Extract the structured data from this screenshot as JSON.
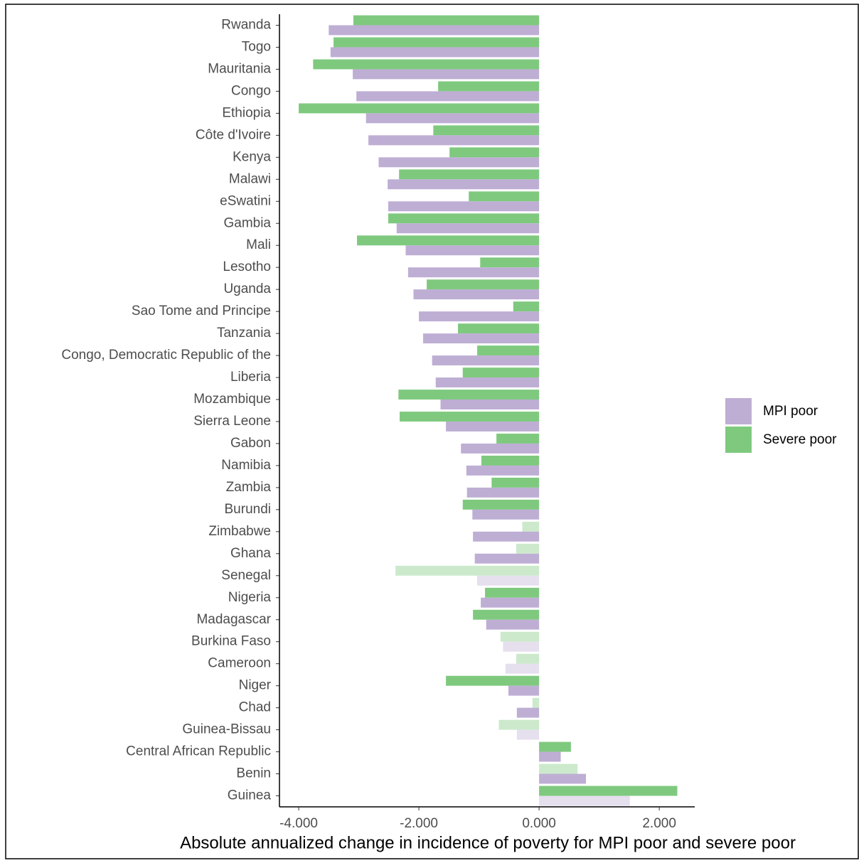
{
  "chart_data": {
    "type": "bar",
    "orientation": "horizontal",
    "xlabel": "Absolute annualized change in incidence of poverty for MPI poor and severe poor",
    "categories": [
      "Rwanda",
      "Togo",
      "Mauritania",
      "Congo",
      "Ethiopia",
      "Côte d'Ivoire",
      "Kenya",
      "Malawi",
      "eSwatini",
      "Gambia",
      "Mali",
      "Lesotho",
      "Uganda",
      "Sao Tome and Principe",
      "Tanzania",
      "Congo, Democratic Republic of the",
      "Liberia",
      "Mozambique",
      "Sierra Leone",
      "Gabon",
      "Namibia",
      "Zambia",
      "Burundi",
      "Zimbabwe",
      "Ghana",
      "Senegal",
      "Nigeria",
      "Madagascar",
      "Burkina Faso",
      "Cameroon",
      "Niger",
      "Chad",
      "Guinea-Bissau",
      "Central African Republic",
      "Benin",
      "Guinea"
    ],
    "series": [
      {
        "name": "MPI poor",
        "color": "#beaed4",
        "values": [
          -3.5,
          -3.47,
          -3.1,
          -3.04,
          -2.88,
          -2.84,
          -2.67,
          -2.52,
          -2.51,
          -2.37,
          -2.22,
          -2.18,
          -2.09,
          -2.0,
          -1.93,
          -1.78,
          -1.72,
          -1.64,
          -1.55,
          -1.3,
          -1.21,
          -1.2,
          -1.11,
          -1.1,
          -1.07,
          -1.03,
          -0.97,
          -0.88,
          -0.6,
          -0.56,
          -0.51,
          -0.37,
          -0.37,
          0.36,
          0.78,
          1.51
        ],
        "colors": [
          "#beaed4",
          "#beaed4",
          "#beaed4",
          "#beaed4",
          "#beaed4",
          "#beaed4",
          "#beaed4",
          "#beaed4",
          "#beaed4",
          "#beaed4",
          "#beaed4",
          "#beaed4",
          "#beaed4",
          "#beaed4",
          "#beaed4",
          "#beaed4",
          "#beaed4",
          "#beaed4",
          "#beaed4",
          "#beaed4",
          "#beaed4",
          "#beaed4",
          "#beaed4",
          "#beaed4",
          "#beaed4",
          "#e5dfee",
          "#beaed4",
          "#beaed4",
          "#e5dfee",
          "#e5dfee",
          "#beaed4",
          "#beaed4",
          "#e5dfee",
          "#beaed4",
          "#beaed4",
          "#e5dfee"
        ]
      },
      {
        "name": "Severe poor",
        "color": "#7fc97f",
        "values": [
          -3.09,
          -3.42,
          -3.76,
          -1.68,
          -4.0,
          -1.76,
          -1.49,
          -2.33,
          -1.17,
          -2.51,
          -3.03,
          -0.98,
          -1.87,
          -0.43,
          -1.35,
          -1.03,
          -1.27,
          -2.34,
          -2.32,
          -0.71,
          -0.96,
          -0.79,
          -1.27,
          -0.28,
          -0.38,
          -2.39,
          -0.9,
          -1.1,
          -0.64,
          -0.38,
          -1.55,
          -0.11,
          -0.67,
          0.53,
          0.64,
          2.3
        ],
        "colors": [
          "#7fc97f",
          "#7fc97f",
          "#7fc97f",
          "#7fc97f",
          "#7fc97f",
          "#7fc97f",
          "#7fc97f",
          "#7fc97f",
          "#7fc97f",
          "#7fc97f",
          "#7fc97f",
          "#7fc97f",
          "#7fc97f",
          "#7fc97f",
          "#7fc97f",
          "#7fc97f",
          "#7fc97f",
          "#7fc97f",
          "#7fc97f",
          "#7fc97f",
          "#7fc97f",
          "#7fc97f",
          "#7fc97f",
          "#cce9cc",
          "#cce9cc",
          "#cce9cc",
          "#7fc97f",
          "#7fc97f",
          "#cce9cc",
          "#cce9cc",
          "#7fc97f",
          "#cce9cc",
          "#cce9cc",
          "#7fc97f",
          "#cce9cc",
          "#7fc97f"
        ]
      }
    ],
    "xlim": [
      -4.32,
      2.59
    ],
    "xticks": [
      {
        "value": -4,
        "label": "-4.000"
      },
      {
        "value": -2,
        "label": "-2.000"
      },
      {
        "value": 0,
        "label": "0.000"
      },
      {
        "value": 2,
        "label": "2.000"
      }
    ],
    "legend": "right"
  }
}
